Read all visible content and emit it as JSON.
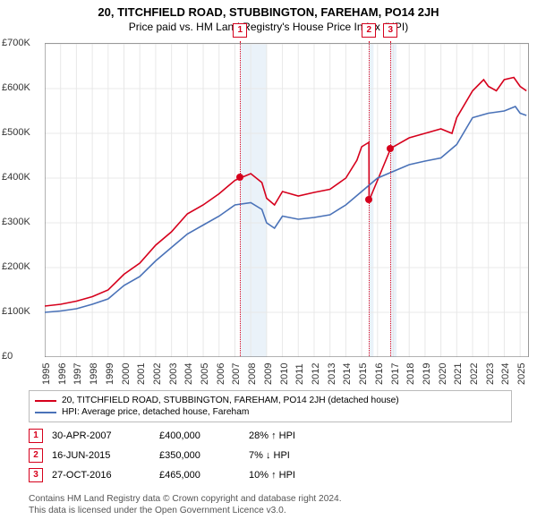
{
  "title_line1": "20, TITCHFIELD ROAD, STUBBINGTON, FAREHAM, PO14 2JH",
  "title_line2": "Price paid vs. HM Land Registry's House Price Index (HPI)",
  "chart": {
    "type": "line",
    "x_domain_years": [
      1995,
      2025.5
    ],
    "y_domain_gbp": [
      0,
      700000
    ],
    "y_ticks": [
      0,
      100000,
      200000,
      300000,
      400000,
      500000,
      600000,
      700000
    ],
    "y_tick_labels": [
      "£0",
      "£100K",
      "£200K",
      "£300K",
      "£400K",
      "£500K",
      "£600K",
      "£700K"
    ],
    "x_ticks_years": [
      1995,
      1996,
      1997,
      1998,
      1999,
      2000,
      2001,
      2002,
      2003,
      2004,
      2005,
      2006,
      2007,
      2008,
      2009,
      2010,
      2011,
      2012,
      2013,
      2014,
      2015,
      2016,
      2017,
      2018,
      2019,
      2020,
      2021,
      2022,
      2023,
      2024,
      2025
    ],
    "grid_color": "#e8e8e8",
    "shade_color": "#eaf2f9",
    "background_color": "#ffffff",
    "plot_border_color": "#999999",
    "line_width": 1.6,
    "label_fontsize": 11,
    "shaded_bands_years": [
      [
        2007.33,
        2009.0
      ],
      [
        2015.46,
        2015.75
      ],
      [
        2016.82,
        2017.2
      ]
    ],
    "series": [
      {
        "name": "20, TITCHFIELD ROAD, STUBBINGTON, FAREHAM, PO14 2JH (detached house)",
        "color": "#d6001c",
        "data": [
          [
            1995,
            114000
          ],
          [
            1996,
            118000
          ],
          [
            1997,
            125000
          ],
          [
            1998,
            135000
          ],
          [
            1999,
            150000
          ],
          [
            2000,
            185000
          ],
          [
            2001,
            210000
          ],
          [
            2002,
            250000
          ],
          [
            2003,
            280000
          ],
          [
            2004,
            320000
          ],
          [
            2005,
            340000
          ],
          [
            2006,
            365000
          ],
          [
            2007,
            395000
          ],
          [
            2007.33,
            400000
          ],
          [
            2008,
            410000
          ],
          [
            2008.7,
            390000
          ],
          [
            2009,
            355000
          ],
          [
            2009.5,
            340000
          ],
          [
            2010,
            370000
          ],
          [
            2011,
            360000
          ],
          [
            2012,
            368000
          ],
          [
            2013,
            375000
          ],
          [
            2014,
            400000
          ],
          [
            2014.7,
            440000
          ],
          [
            2015,
            470000
          ],
          [
            2015.46,
            480000
          ],
          [
            2015.47,
            350000
          ],
          [
            2016,
            395000
          ],
          [
            2016.82,
            465000
          ],
          [
            2017,
            470000
          ],
          [
            2018,
            490000
          ],
          [
            2019,
            500000
          ],
          [
            2020,
            510000
          ],
          [
            2020.7,
            500000
          ],
          [
            2021,
            535000
          ],
          [
            2022,
            595000
          ],
          [
            2022.7,
            620000
          ],
          [
            2023,
            605000
          ],
          [
            2023.5,
            595000
          ],
          [
            2024,
            620000
          ],
          [
            2024.6,
            625000
          ],
          [
            2025,
            605000
          ],
          [
            2025.4,
            595000
          ]
        ]
      },
      {
        "name": "HPI: Average price, detached house, Fareham",
        "color": "#4a72b8",
        "data": [
          [
            1995,
            100000
          ],
          [
            1996,
            103000
          ],
          [
            1997,
            108000
          ],
          [
            1998,
            118000
          ],
          [
            1999,
            130000
          ],
          [
            2000,
            160000
          ],
          [
            2001,
            180000
          ],
          [
            2002,
            215000
          ],
          [
            2003,
            245000
          ],
          [
            2004,
            275000
          ],
          [
            2005,
            295000
          ],
          [
            2006,
            315000
          ],
          [
            2007,
            340000
          ],
          [
            2008,
            345000
          ],
          [
            2008.7,
            330000
          ],
          [
            2009,
            300000
          ],
          [
            2009.5,
            288000
          ],
          [
            2010,
            315000
          ],
          [
            2011,
            308000
          ],
          [
            2012,
            312000
          ],
          [
            2013,
            318000
          ],
          [
            2014,
            340000
          ],
          [
            2015,
            370000
          ],
          [
            2016,
            400000
          ],
          [
            2017,
            415000
          ],
          [
            2018,
            430000
          ],
          [
            2019,
            438000
          ],
          [
            2020,
            445000
          ],
          [
            2021,
            475000
          ],
          [
            2022,
            535000
          ],
          [
            2023,
            545000
          ],
          [
            2024,
            550000
          ],
          [
            2024.7,
            560000
          ],
          [
            2025,
            545000
          ],
          [
            2025.4,
            540000
          ]
        ]
      }
    ],
    "transaction_markers": [
      {
        "id": "1",
        "year": 2007.33,
        "price": 400000
      },
      {
        "id": "2",
        "year": 2015.46,
        "price": 350000
      },
      {
        "id": "3",
        "year": 2016.82,
        "price": 465000
      }
    ]
  },
  "legend": [
    {
      "color": "#d6001c",
      "label": "20, TITCHFIELD ROAD, STUBBINGTON, FAREHAM, PO14 2JH (detached house)"
    },
    {
      "color": "#4a72b8",
      "label": "HPI: Average price, detached house, Fareham"
    }
  ],
  "transactions": [
    {
      "id": "1",
      "date": "30-APR-2007",
      "price": "£400,000",
      "delta": "28% ↑ HPI"
    },
    {
      "id": "2",
      "date": "16-JUN-2015",
      "price": "£350,000",
      "delta": "7% ↓ HPI"
    },
    {
      "id": "3",
      "date": "27-OCT-2016",
      "price": "£465,000",
      "delta": "10% ↑ HPI"
    }
  ],
  "footer_line1": "Contains HM Land Registry data © Crown copyright and database right 2024.",
  "footer_line2": "This data is licensed under the Open Government Licence v3.0."
}
